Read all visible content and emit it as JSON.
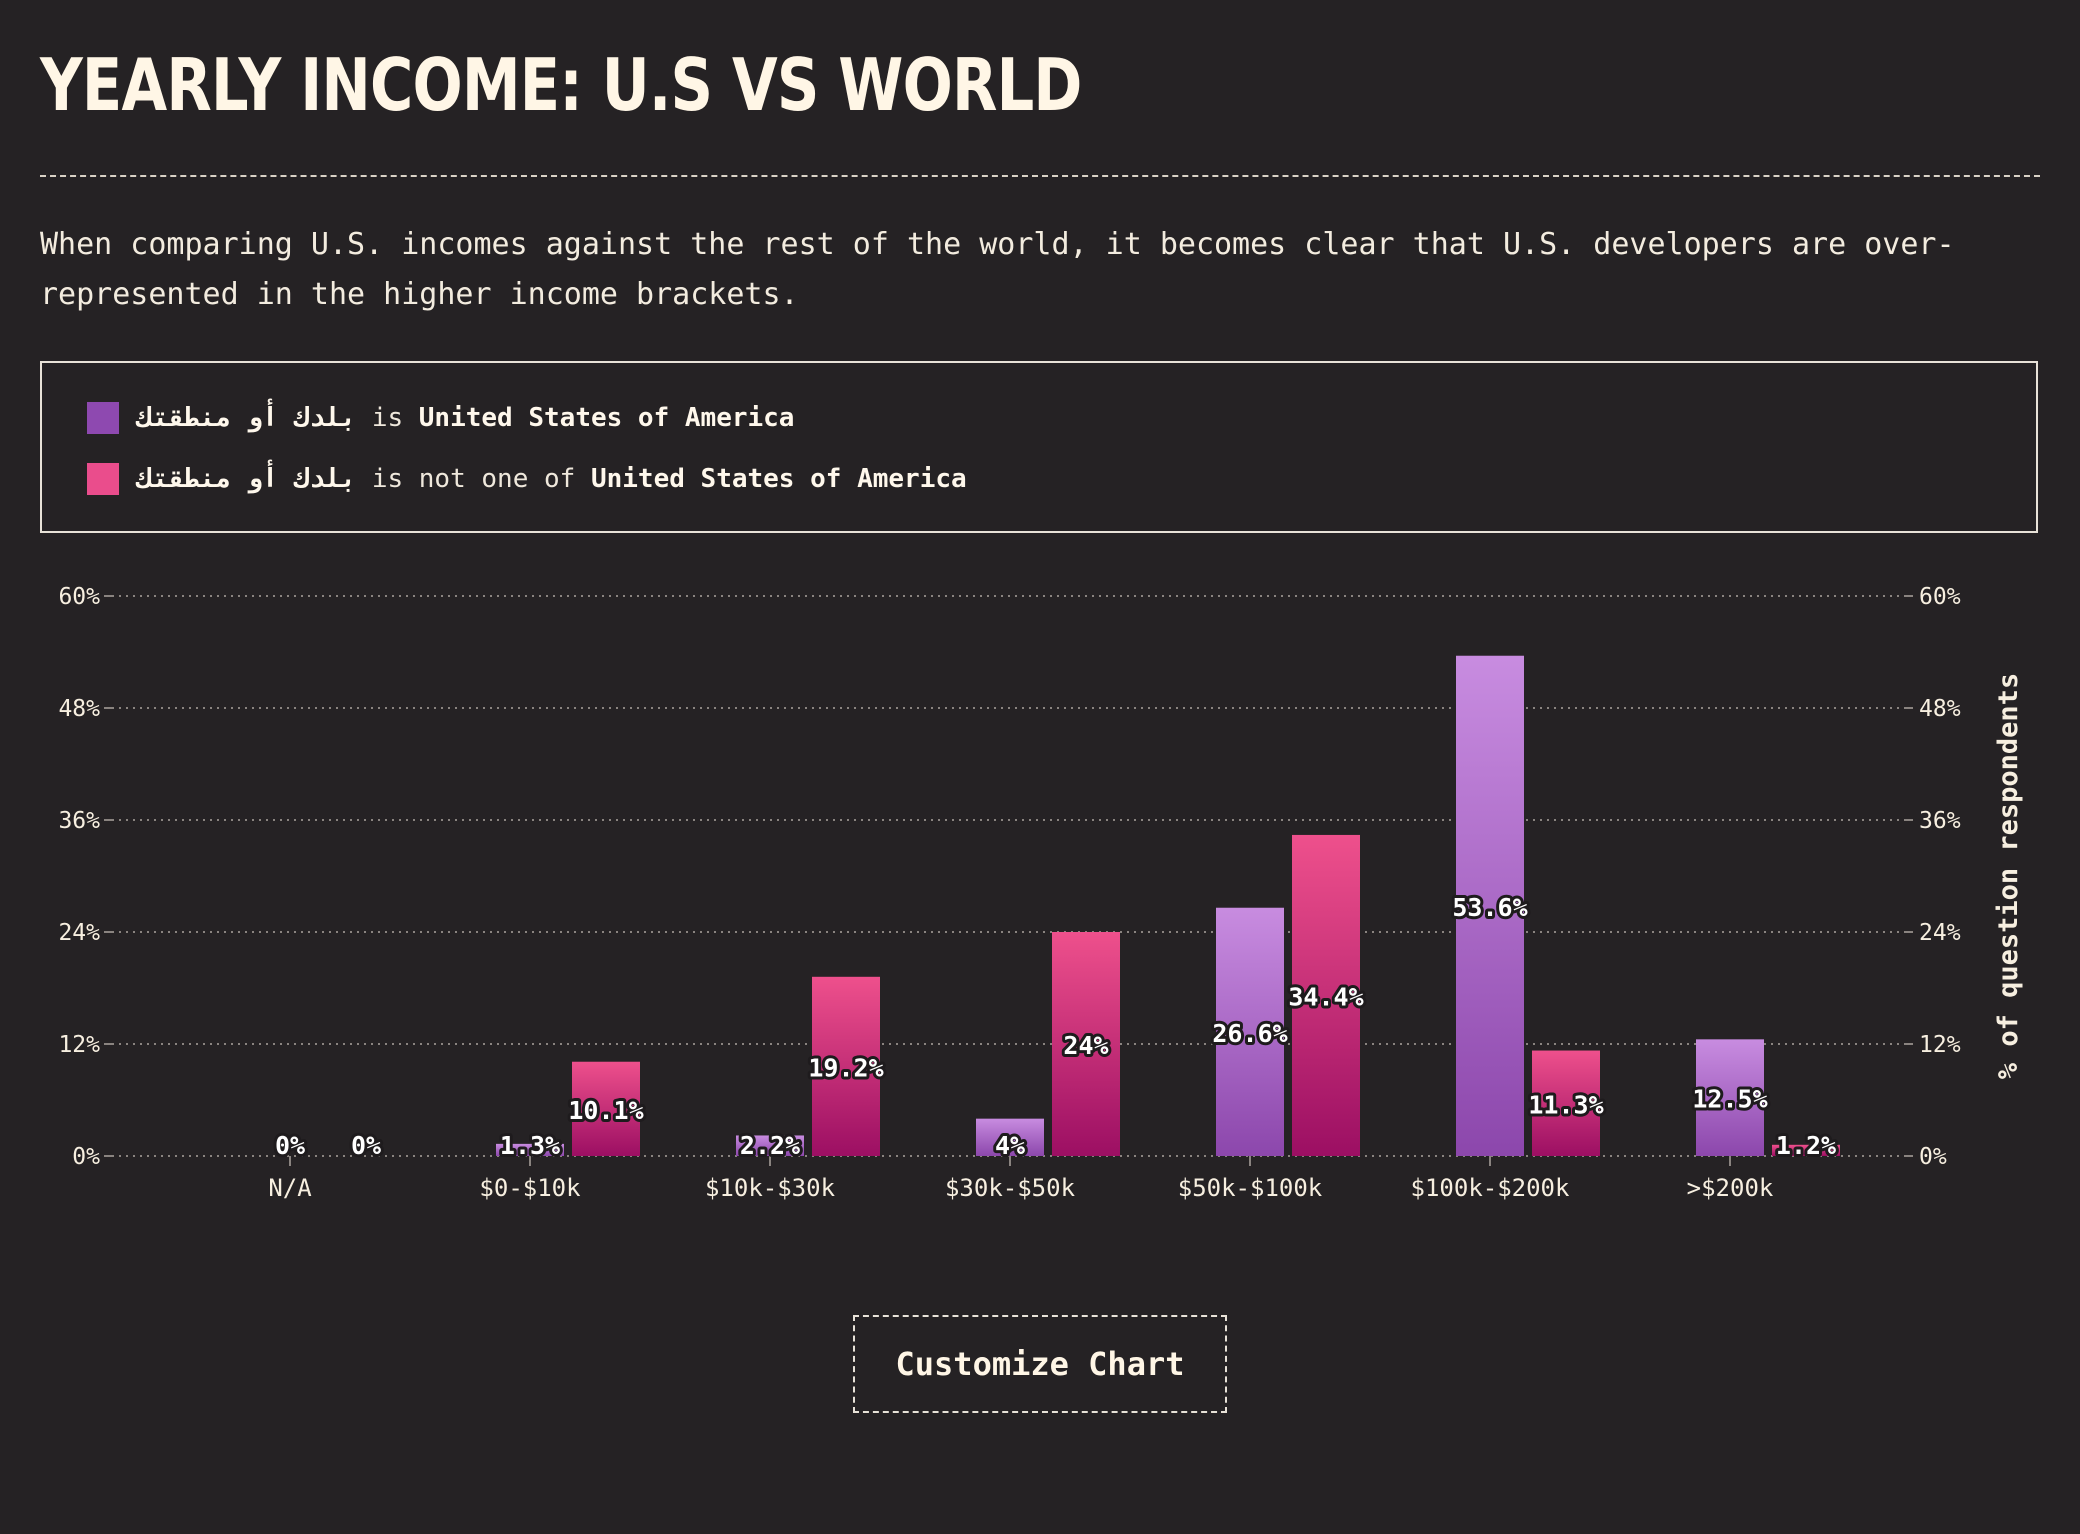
{
  "header": {
    "title": "YEARLY INCOME: U.S VS WORLD",
    "description": "When comparing U.S. incomes against the rest of the world, it becomes clear that U.S. developers are over-represented in the higher income brackets."
  },
  "legend": {
    "items": [
      {
        "field": "بلدك أو منطقتك",
        "operator": "is",
        "value": "United States of America",
        "color": "#8e49b0"
      },
      {
        "field": "بلدك أو منطقتك",
        "operator": "is not one of",
        "value": "United States of America",
        "color": "#ea4d8c"
      }
    ]
  },
  "chart_data": {
    "type": "bar",
    "categories": [
      "N/A",
      "$0-$10k",
      "$10k-$30k",
      "$30k-$50k",
      "$50k-$100k",
      "$100k-$200k",
      ">$200k"
    ],
    "series": [
      {
        "values": [
          0,
          1.3,
          2.2,
          4,
          26.6,
          53.6,
          12.5
        ],
        "labels": [
          "0%",
          "1.3%",
          "2.2%",
          "4%",
          "26.6%",
          "53.6%",
          "12.5%"
        ],
        "color_top": "#c88ce0",
        "color_bottom": "#8c47ac"
      },
      {
        "values": [
          0,
          10.1,
          19.2,
          24,
          34.4,
          11.3,
          1.2
        ],
        "labels": [
          "0%",
          "10.1%",
          "19.2%",
          "24%",
          "34.4%",
          "11.3%",
          "1.2%"
        ],
        "color_top": "#ee508c",
        "color_bottom": "#9c0f63"
      }
    ],
    "y_ticks": [
      "0%",
      "12%",
      "24%",
      "36%",
      "48%",
      "60%"
    ],
    "ylim": [
      0,
      60
    ],
    "ylabel": "% of question respondents",
    "xlabel": "",
    "grid": true,
    "legend_position": "top"
  },
  "actions": {
    "customize_label": "Customize Chart"
  },
  "colors": {
    "background": "#252224",
    "text": "#f7efe0",
    "grid": "#8a8480"
  }
}
